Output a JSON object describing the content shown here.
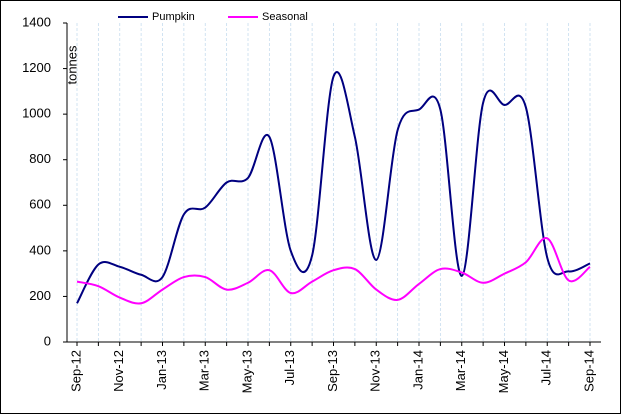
{
  "chart_data": {
    "type": "line",
    "y_label": "tonnes",
    "categories": [
      "Sep-12",
      null,
      "Nov-12",
      null,
      "Jan-13",
      null,
      "Mar-13",
      null,
      "May-13",
      null,
      "Jul-13",
      null,
      "Sep-13",
      null,
      "Nov-13",
      null,
      "Jan-14",
      null,
      "Mar-14",
      null,
      "May-14",
      null,
      "Jul-14",
      null,
      "Sep-14"
    ],
    "series": [
      {
        "name": "Pumpkin",
        "color": "#000080",
        "values": [
          170,
          340,
          330,
          295,
          285,
          560,
          590,
          700,
          720,
          900,
          400,
          380,
          1165,
          900,
          360,
          930,
          1020,
          1020,
          290,
          1050,
          1040,
          1030,
          370,
          310,
          345
        ]
      },
      {
        "name": "Seasonal",
        "color": "#ff00ff",
        "values": [
          265,
          245,
          195,
          170,
          230,
          285,
          285,
          230,
          260,
          315,
          215,
          265,
          315,
          320,
          230,
          185,
          255,
          320,
          305,
          260,
          300,
          350,
          455,
          270,
          330
        ]
      }
    ],
    "ylim": [
      0,
      1400
    ],
    "yticks": [
      0,
      200,
      400,
      600,
      800,
      1000,
      1200,
      1400
    ],
    "grid": true,
    "legend": "top"
  }
}
